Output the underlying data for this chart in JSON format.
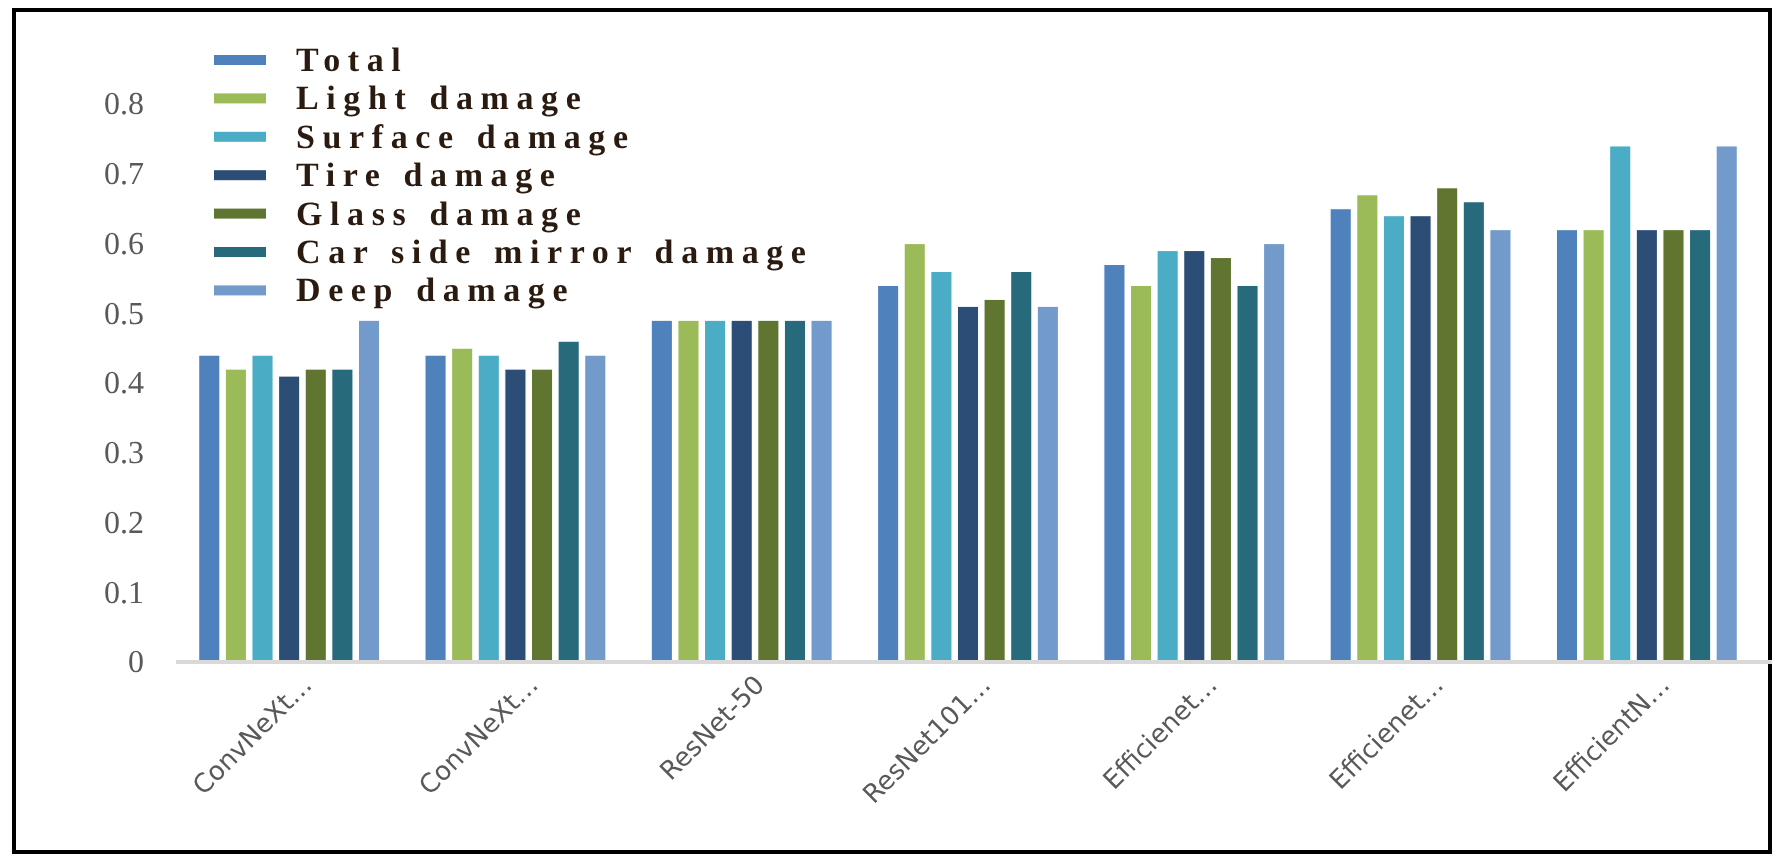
{
  "chart_data": {
    "type": "bar",
    "categories": [
      "ConvNeXt…",
      "ConvNeXt…",
      "ResNet-50",
      "ResNet101…",
      "Efficienet…",
      "Efficienet…",
      "EfficientN…"
    ],
    "series": [
      {
        "name": "Total",
        "color": "#4f81bd",
        "values": [
          0.44,
          0.44,
          0.49,
          0.54,
          0.57,
          0.65,
          0.62
        ]
      },
      {
        "name": "Light damage",
        "color": "#9bbb59",
        "values": [
          0.42,
          0.45,
          0.49,
          0.6,
          0.54,
          0.67,
          0.62
        ]
      },
      {
        "name": "Surface damage",
        "color": "#4bacc6",
        "values": [
          0.44,
          0.44,
          0.49,
          0.56,
          0.59,
          0.64,
          0.74
        ]
      },
      {
        "name": "Tire damage",
        "color": "#2c4d75",
        "values": [
          0.41,
          0.42,
          0.49,
          0.51,
          0.59,
          0.64,
          0.62
        ]
      },
      {
        "name": "Glass damage",
        "color": "#5f7530",
        "values": [
          0.42,
          0.42,
          0.49,
          0.52,
          0.58,
          0.68,
          0.62
        ]
      },
      {
        "name": "Car side mirror damage",
        "color": "#276a7c",
        "values": [
          0.42,
          0.46,
          0.49,
          0.56,
          0.54,
          0.66,
          0.62
        ]
      },
      {
        "name": "Deep damage",
        "color": "#729aca",
        "values": [
          0.49,
          0.44,
          0.49,
          0.51,
          0.6,
          0.62,
          0.74
        ]
      }
    ],
    "ylim": [
      0,
      0.8
    ],
    "yticks": [
      0,
      0.1,
      0.2,
      0.3,
      0.4,
      0.5,
      0.6,
      0.7,
      0.8
    ],
    "legend": "top left"
  }
}
